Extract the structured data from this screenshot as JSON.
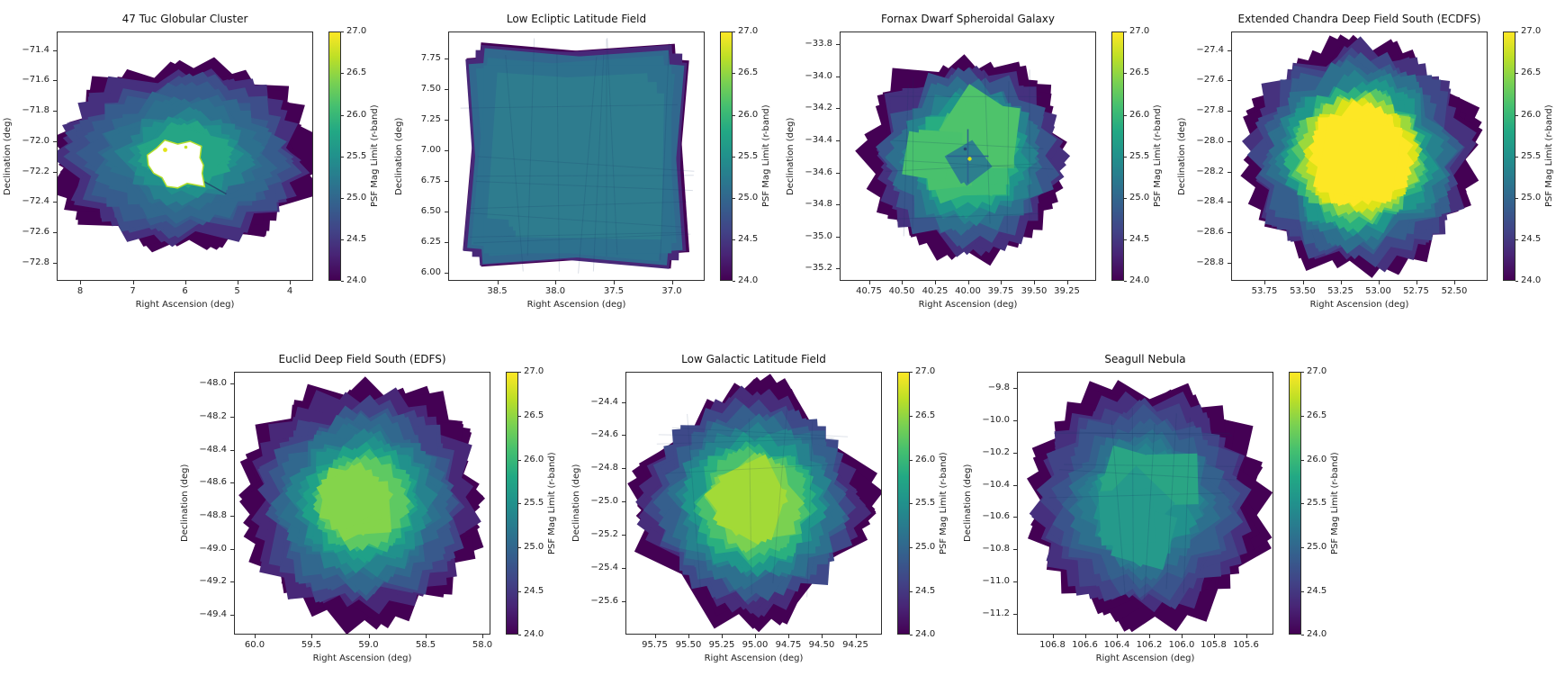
{
  "figure": {
    "background": "#ffffff",
    "panels_per_row": [
      4,
      3
    ],
    "colormap": "viridis",
    "description": "Coadded image depth maps (PSF magnitude limit, r-band) for seven survey fields"
  },
  "axis": {
    "xlabel": "Right Ascension (deg)",
    "ylabel": "Declination (deg)"
  },
  "colorbar": {
    "label": "PSF Mag Limit (r-band)",
    "vmin": 24.0,
    "vmax": 27.0,
    "tick_vals": [
      27.0,
      26.5,
      26.0,
      25.5,
      25.0,
      24.5,
      24.0
    ],
    "tick_labels": [
      "27.0",
      "26.5",
      "26.0",
      "25.5",
      "25.0",
      "24.5",
      "24.0"
    ],
    "colormap": "viridis"
  },
  "chart_data": [
    {
      "type": "heatmap",
      "title": "47 Tuc Globular Cluster",
      "xlabel": "Right Ascension (deg)",
      "ylabel": "Declination (deg)",
      "xlim": [
        8.45,
        3.55
      ],
      "ylim": [
        -72.92,
        -71.28
      ],
      "x_tick_vals": [
        8,
        7,
        6,
        5,
        4
      ],
      "x_tick_labels": [
        "8",
        "7",
        "6",
        "5",
        "4"
      ],
      "y_tick_vals": [
        -71.4,
        -71.6,
        -71.8,
        -72.0,
        -72.2,
        -72.4,
        -72.6,
        -72.8
      ],
      "y_tick_labels": [
        "−71.4",
        "−71.6",
        "−71.8",
        "−72.0",
        "−72.2",
        "−72.4",
        "−72.6",
        "−72.8"
      ],
      "field": {
        "center_ra": 6.0,
        "center_dec": -72.1,
        "peak_mag": 26.0,
        "edge_mag": 24.0,
        "notes": "Blue/teal annular coverage ~24.5-25.8; saturated cluster core masked white at centre with bright ~27 rim; dark purple jagged edges"
      }
    },
    {
      "type": "heatmap",
      "title": "Low Ecliptic Latitude Field",
      "xlabel": "Right Ascension (deg)",
      "ylabel": "Declination (deg)",
      "xlim": [
        38.92,
        36.72
      ],
      "ylim": [
        5.93,
        7.97
      ],
      "x_tick_vals": [
        38.5,
        38.0,
        37.5,
        37.0
      ],
      "x_tick_labels": [
        "38.5",
        "38.0",
        "37.5",
        "37.0"
      ],
      "y_tick_vals": [
        7.75,
        7.5,
        7.25,
        7.0,
        6.75,
        6.5,
        6.25,
        6.0
      ],
      "y_tick_labels": [
        "7.75",
        "7.50",
        "7.25",
        "7.00",
        "6.75",
        "6.50",
        "6.25",
        "6.00"
      ],
      "field": {
        "center_ra": 37.8,
        "center_dec": 6.95,
        "peak_mag": 25.4,
        "edge_mag": 24.0,
        "notes": "Large rotated-square footprint; nearly uniform teal depth ~25.0-25.4 with faint grid seams; thin dark 24.0 border"
      }
    },
    {
      "type": "heatmap",
      "title": "Fornax Dwarf Spheroidal Galaxy",
      "xlabel": "Right Ascension (deg)",
      "ylabel": "Declination (deg)",
      "xlim": [
        40.97,
        39.03
      ],
      "ylim": [
        -35.28,
        -33.72
      ],
      "x_tick_vals": [
        40.75,
        40.5,
        40.25,
        40.0,
        39.75,
        39.5,
        39.25
      ],
      "x_tick_labels": [
        "40.75",
        "40.50",
        "40.25",
        "40.00",
        "39.75",
        "39.50",
        "39.25"
      ],
      "y_tick_vals": [
        -33.8,
        -34.0,
        -34.2,
        -34.4,
        -34.6,
        -34.8,
        -35.0,
        -35.2
      ],
      "y_tick_labels": [
        "−33.8",
        "−34.0",
        "−34.2",
        "−34.4",
        "−34.6",
        "−34.8",
        "−35.0",
        "−35.2"
      ],
      "field": {
        "center_ra": 40.0,
        "center_dec": -34.45,
        "peak_mag": 26.3,
        "edge_mag": 24.0,
        "notes": "Square-ish green interior ~25.8-26.2 with darker teal central patch, dark seam cross and bright ~26.8 point at galaxy centre"
      }
    },
    {
      "type": "heatmap",
      "title": "Extended Chandra Deep Field South (ECDFS)",
      "xlabel": "Right Ascension (deg)",
      "ylabel": "Declination (deg)",
      "xlim": [
        53.97,
        52.28
      ],
      "ylim": [
        -28.92,
        -27.28
      ],
      "x_tick_vals": [
        53.75,
        53.5,
        53.25,
        53.0,
        52.75,
        52.5
      ],
      "x_tick_labels": [
        "53.75",
        "53.50",
        "53.25",
        "53.00",
        "52.75",
        "52.50"
      ],
      "y_tick_vals": [
        -27.4,
        -27.6,
        -27.8,
        -28.0,
        -28.2,
        -28.4,
        -28.6,
        -28.8
      ],
      "y_tick_labels": [
        "−27.4",
        "−27.6",
        "−27.8",
        "−28.0",
        "−28.2",
        "−28.4",
        "−28.6",
        "−28.8"
      ],
      "field": {
        "center_ra": 53.1,
        "center_dec": -28.1,
        "peak_mag": 27.0,
        "edge_mag": 24.0,
        "notes": "Deepest field: broad saturated yellow core 26.8-27.0, smooth radial gradient through green and teal to dark 24.0 jagged rim"
      }
    },
    {
      "type": "heatmap",
      "title": "Euclid Deep Field South (EDFS)",
      "xlabel": "Right Ascension (deg)",
      "ylabel": "Declination (deg)",
      "xlim": [
        60.18,
        57.93
      ],
      "ylim": [
        -49.52,
        -47.93
      ],
      "x_tick_vals": [
        60.0,
        59.5,
        59.0,
        58.5,
        58.0
      ],
      "x_tick_labels": [
        "60.0",
        "59.5",
        "59.0",
        "58.5",
        "58.0"
      ],
      "y_tick_vals": [
        -48.0,
        -48.2,
        -48.4,
        -48.6,
        -48.8,
        -49.0,
        -49.2,
        -49.4
      ],
      "y_tick_labels": [
        "−48.0",
        "−48.2",
        "−48.4",
        "−48.6",
        "−48.8",
        "−49.0",
        "−49.2",
        "−49.4"
      ],
      "field": {
        "center_ra": 59.1,
        "center_dec": -48.7,
        "peak_mag": 26.4,
        "edge_mag": 24.0,
        "notes": "Round footprint with green core ~26.2-26.4 grading through teal and blue to very spiky dark purple 24.0 edge"
      }
    },
    {
      "type": "heatmap",
      "title": "Low Galactic Latitude Field",
      "xlabel": "Right Ascension (deg)",
      "ylabel": "Declination (deg)",
      "xlim": [
        95.97,
        94.05
      ],
      "ylim": [
        -25.8,
        -24.22
      ],
      "x_tick_vals": [
        95.75,
        95.5,
        95.25,
        95.0,
        94.75,
        94.5,
        94.25
      ],
      "x_tick_labels": [
        "95.75",
        "95.50",
        "95.25",
        "95.00",
        "94.75",
        "94.50",
        "94.25"
      ],
      "y_tick_vals": [
        -24.4,
        -24.6,
        -24.8,
        -25.0,
        -25.2,
        -25.4,
        -25.6
      ],
      "y_tick_labels": [
        "−24.4",
        "−24.6",
        "−24.8",
        "−25.0",
        "−25.2",
        "−25.4",
        "−25.6"
      ],
      "field": {
        "center_ra": 95.0,
        "center_dec": -25.0,
        "peak_mag": 26.3,
        "edge_mag": 24.0,
        "notes": "Diamond-oriented footprint; yellow-green core ~26.1-26.3 grading to teal/blue with dark 24.0 corners and jagged rim"
      }
    },
    {
      "type": "heatmap",
      "title": "Seagull Nebula",
      "xlabel": "Right Ascension (deg)",
      "ylabel": "Declination (deg)",
      "xlim": [
        107.02,
        105.43
      ],
      "ylim": [
        -11.33,
        -9.7
      ],
      "x_tick_vals": [
        106.8,
        106.6,
        106.4,
        106.2,
        106.0,
        105.8,
        105.6
      ],
      "x_tick_labels": [
        "106.8",
        "106.6",
        "106.4",
        "106.2",
        "106.0",
        "105.8",
        "105.6"
      ],
      "y_tick_vals": [
        -9.8,
        -10.0,
        -10.2,
        -10.4,
        -10.6,
        -10.8,
        -11.0,
        -11.2
      ],
      "y_tick_labels": [
        "−9.8",
        "−10.0",
        "−10.2",
        "−10.4",
        "−10.6",
        "−10.8",
        "−11.0",
        "−11.2"
      ],
      "field": {
        "center_ra": 106.3,
        "center_dec": -10.5,
        "peak_mag": 25.9,
        "edge_mag": 24.0,
        "notes": "Patchy teal interior ~25.0-25.8 with green-teal patches; broad dark purple 24.0 jagged outskirts"
      }
    }
  ]
}
